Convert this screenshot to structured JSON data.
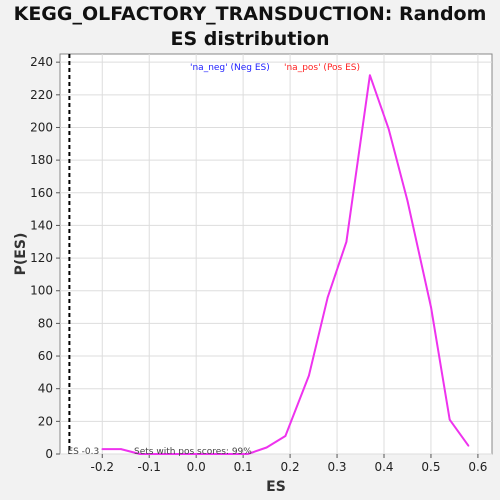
{
  "chart_data": {
    "type": "line",
    "title_line1": "KEGG_OLFACTORY_TRANSDUCTION: Random",
    "title_line2": "ES distribution",
    "xlabel": "ES",
    "ylabel": "P(ES)",
    "xlim": [
      -0.29,
      0.63
    ],
    "ylim": [
      0,
      245
    ],
    "xticks": [
      -0.2,
      -0.1,
      0.0,
      0.1,
      0.2,
      0.3,
      0.4,
      0.5,
      0.6
    ],
    "xtick_labels": [
      "-0.2",
      "-0.1",
      "0.0",
      "0.1",
      "0.2",
      "0.3",
      "0.4",
      "0.5",
      "0.6"
    ],
    "yticks": [
      0,
      20,
      40,
      60,
      80,
      100,
      120,
      140,
      160,
      180,
      200,
      220,
      240
    ],
    "yticks_labels": [
      "0",
      "20",
      "40",
      "60",
      "80",
      "100",
      "120",
      "140",
      "160",
      "180",
      "200",
      "220",
      "240"
    ],
    "grid": true,
    "legend": [
      {
        "name": "'na_neg' (Neg ES)",
        "color": "#2222ff"
      },
      {
        "name": "'na_pos' (Pos ES)",
        "color": "#ff2222"
      }
    ],
    "series": [
      {
        "color": "#ee33ee",
        "x": [
          -0.2,
          -0.16,
          -0.12,
          -0.07,
          -0.03,
          0.02,
          0.06,
          0.11,
          0.15,
          0.19,
          0.24,
          0.28,
          0.32,
          0.37,
          0.41,
          0.45,
          0.5,
          0.54,
          0.58
        ],
        "y": [
          3,
          3,
          0,
          0,
          0,
          0,
          0,
          0,
          4,
          11,
          48,
          96,
          130,
          232,
          199,
          155,
          90,
          21,
          5
        ]
      }
    ],
    "threshold_line": {
      "x": -0.27,
      "color": "#000000",
      "label": "ES -0.3"
    },
    "annotation": "Sets with pos scores: 99%"
  }
}
